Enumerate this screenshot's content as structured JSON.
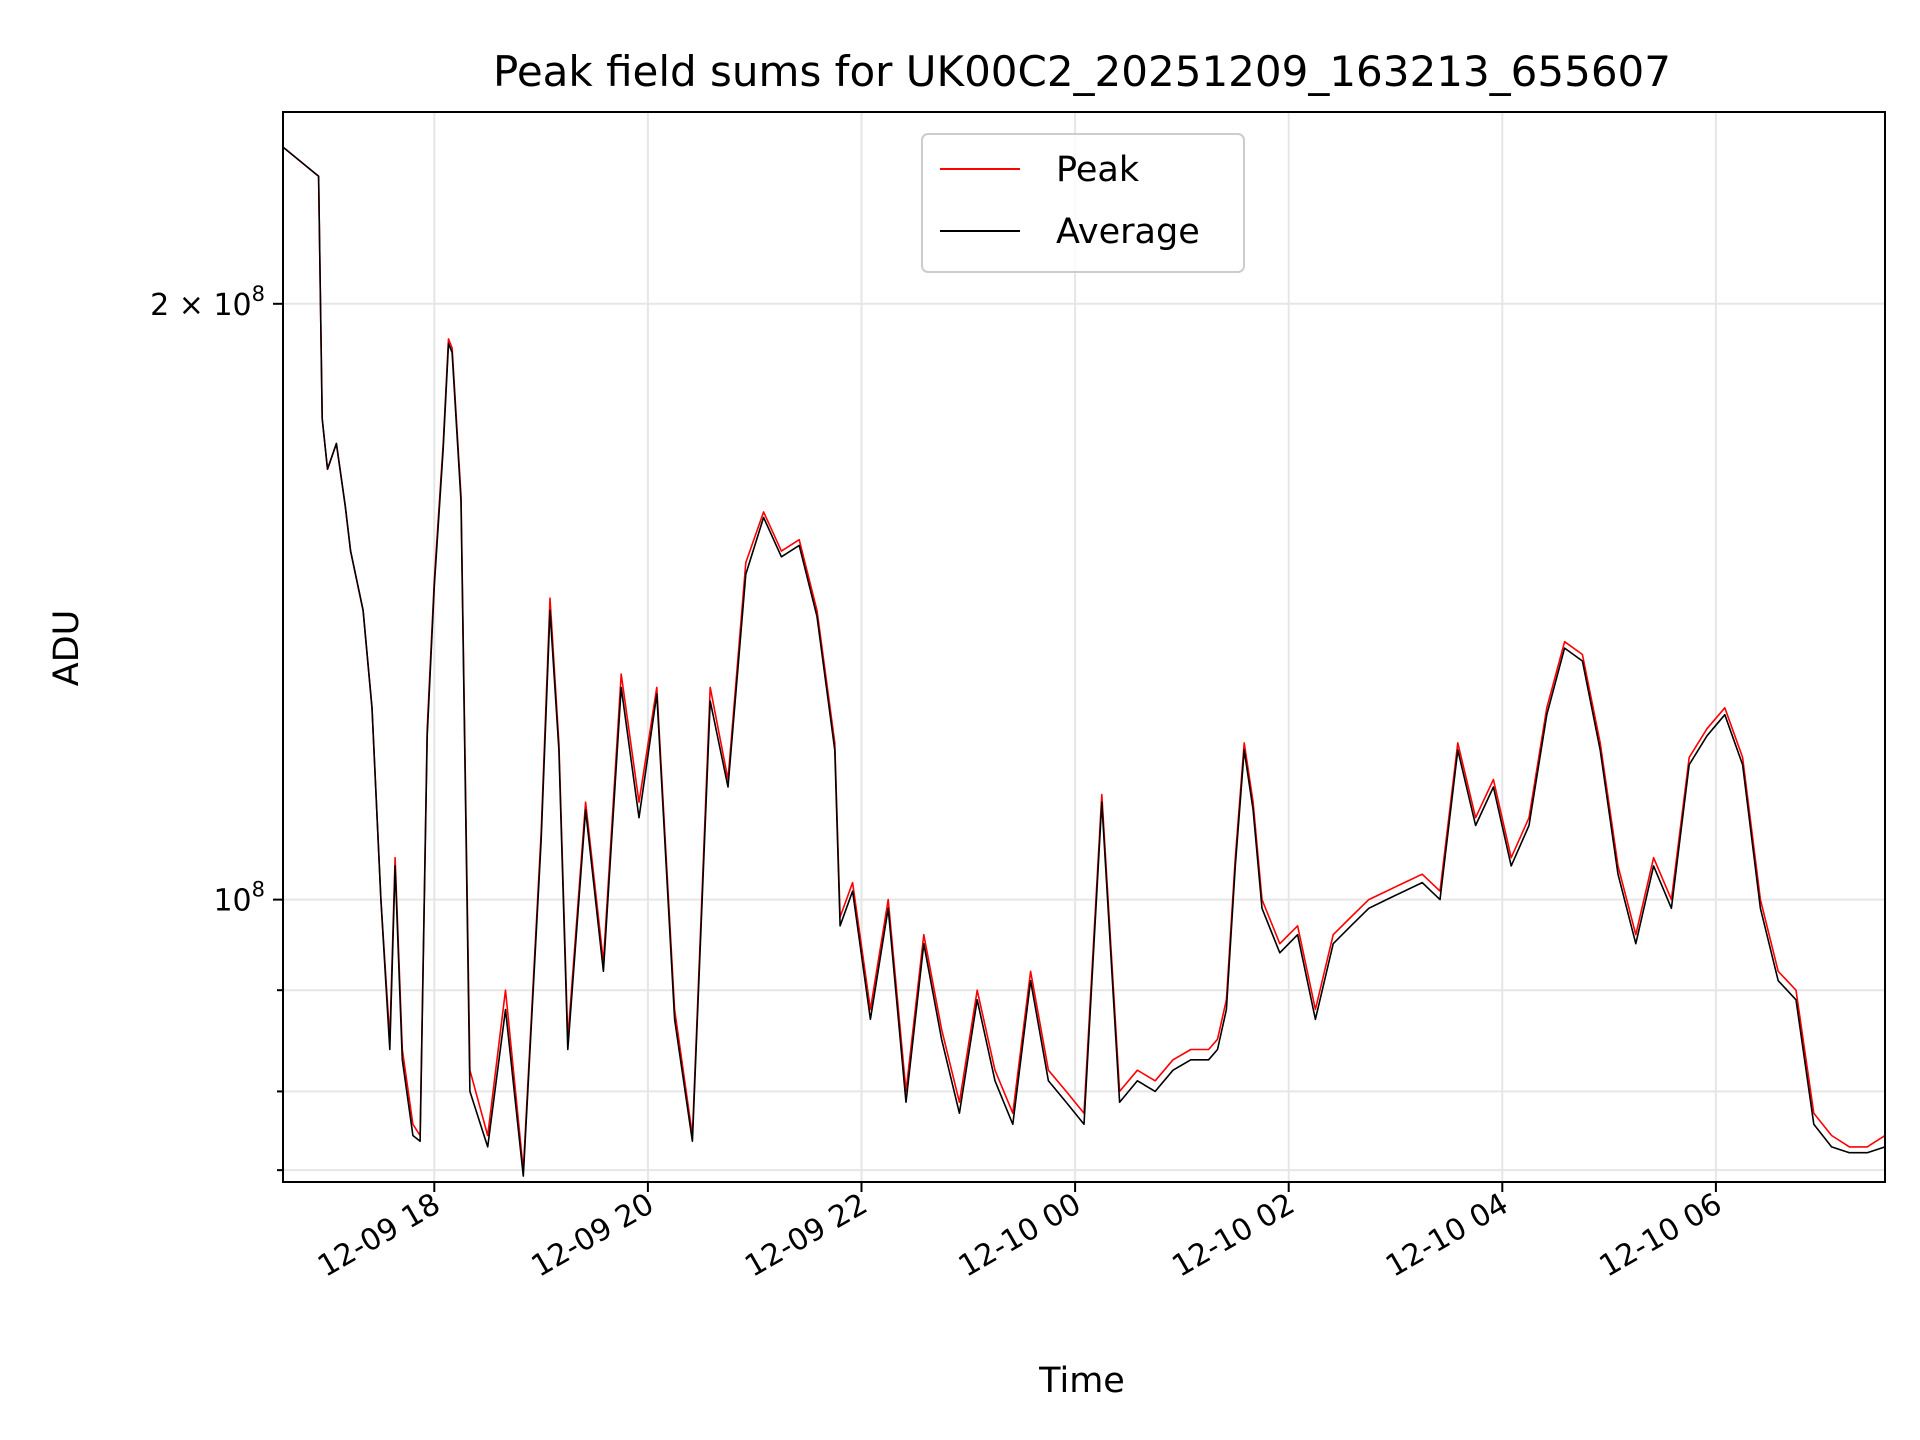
{
  "chart_data": {
    "type": "line",
    "title": "Peak field sums for UK00C2_20251209_163213_655607",
    "xlabel": "Time",
    "ylabel": "ADU",
    "yscale": "log",
    "ylim": [
      72000000,
      250000000
    ],
    "xlim": [
      "2025-12-09T16:35",
      "2025-12-10T07:35"
    ],
    "grid": true,
    "legend": "upper-center",
    "x_ticks": [
      {
        "t": "2025-12-09T18:00",
        "label": "12-09 18"
      },
      {
        "t": "2025-12-09T20:00",
        "label": "12-09 20"
      },
      {
        "t": "2025-12-09T22:00",
        "label": "12-09 22"
      },
      {
        "t": "2025-12-10T00:00",
        "label": "12-10 00"
      },
      {
        "t": "2025-12-10T02:00",
        "label": "12-10 02"
      },
      {
        "t": "2025-12-10T04:00",
        "label": "12-10 04"
      },
      {
        "t": "2025-12-10T06:00",
        "label": "12-10 06"
      }
    ],
    "y_major_ticks": [
      {
        "value": 100000000,
        "base": "10",
        "exp": "8"
      },
      {
        "value": 200000000,
        "mantissa": "2",
        "base": "10",
        "exp": "8"
      }
    ],
    "y_minor_ticks": [
      73000000,
      80000000,
      90000000
    ],
    "series": [
      {
        "name": "Peak",
        "color": "#ff0000",
        "points": [
          [
            "2025-12-09T16:35",
            240000000
          ],
          [
            "2025-12-09T16:55",
            232000000
          ],
          [
            "2025-12-09T16:57",
            175000000
          ],
          [
            "2025-12-09T17:00",
            165000000
          ],
          [
            "2025-12-09T17:05",
            170000000
          ],
          [
            "2025-12-09T17:10",
            158000000
          ],
          [
            "2025-12-09T17:13",
            150000000
          ],
          [
            "2025-12-09T17:20",
            140000000
          ],
          [
            "2025-12-09T17:25",
            125000000
          ],
          [
            "2025-12-09T17:30",
            100000000
          ],
          [
            "2025-12-09T17:35",
            85000000
          ],
          [
            "2025-12-09T17:38",
            105000000
          ],
          [
            "2025-12-09T17:42",
            84000000
          ],
          [
            "2025-12-09T17:48",
            77000000
          ],
          [
            "2025-12-09T17:52",
            76000000
          ],
          [
            "2025-12-09T17:56",
            122000000
          ],
          [
            "2025-12-09T18:00",
            145000000
          ],
          [
            "2025-12-09T18:05",
            170000000
          ],
          [
            "2025-12-09T18:08",
            192000000
          ],
          [
            "2025-12-09T18:10",
            190000000
          ],
          [
            "2025-12-09T18:15",
            160000000
          ],
          [
            "2025-12-09T18:20",
            82000000
          ],
          [
            "2025-12-09T18:30",
            76000000
          ],
          [
            "2025-12-09T18:40",
            90000000
          ],
          [
            "2025-12-09T18:50",
            73000000
          ],
          [
            "2025-12-09T19:00",
            108000000
          ],
          [
            "2025-12-09T19:05",
            142000000
          ],
          [
            "2025-12-09T19:10",
            120000000
          ],
          [
            "2025-12-09T19:15",
            85000000
          ],
          [
            "2025-12-09T19:25",
            112000000
          ],
          [
            "2025-12-09T19:35",
            93000000
          ],
          [
            "2025-12-09T19:45",
            130000000
          ],
          [
            "2025-12-09T19:55",
            112000000
          ],
          [
            "2025-12-09T20:05",
            128000000
          ],
          [
            "2025-12-09T20:15",
            88000000
          ],
          [
            "2025-12-09T20:25",
            76000000
          ],
          [
            "2025-12-09T20:35",
            128000000
          ],
          [
            "2025-12-09T20:45",
            115000000
          ],
          [
            "2025-12-09T20:55",
            148000000
          ],
          [
            "2025-12-09T21:05",
            157000000
          ],
          [
            "2025-12-09T21:15",
            150000000
          ],
          [
            "2025-12-09T21:25",
            152000000
          ],
          [
            "2025-12-09T21:35",
            140000000
          ],
          [
            "2025-12-09T21:45",
            120000000
          ],
          [
            "2025-12-09T21:48",
            98000000
          ],
          [
            "2025-12-09T21:55",
            102000000
          ],
          [
            "2025-12-09T22:05",
            88000000
          ],
          [
            "2025-12-09T22:15",
            100000000
          ],
          [
            "2025-12-09T22:25",
            80000000
          ],
          [
            "2025-12-09T22:35",
            96000000
          ],
          [
            "2025-12-09T22:45",
            86000000
          ],
          [
            "2025-12-09T22:55",
            79000000
          ],
          [
            "2025-12-09T23:05",
            90000000
          ],
          [
            "2025-12-09T23:15",
            82000000
          ],
          [
            "2025-12-09T23:25",
            78000000
          ],
          [
            "2025-12-09T23:35",
            92000000
          ],
          [
            "2025-12-09T23:45",
            82000000
          ],
          [
            "2025-12-09T23:55",
            80000000
          ],
          [
            "2025-12-10T00:05",
            78000000
          ],
          [
            "2025-12-10T00:15",
            113000000
          ],
          [
            "2025-12-10T00:25",
            80000000
          ],
          [
            "2025-12-10T00:35",
            82000000
          ],
          [
            "2025-12-10T00:45",
            81000000
          ],
          [
            "2025-12-10T00:55",
            83000000
          ],
          [
            "2025-12-10T01:05",
            84000000
          ],
          [
            "2025-12-10T01:15",
            84000000
          ],
          [
            "2025-12-10T01:20",
            85000000
          ],
          [
            "2025-12-10T01:25",
            89000000
          ],
          [
            "2025-12-10T01:30",
            105000000
          ],
          [
            "2025-12-10T01:35",
            120000000
          ],
          [
            "2025-12-10T01:40",
            112000000
          ],
          [
            "2025-12-10T01:45",
            100000000
          ],
          [
            "2025-12-10T01:55",
            95000000
          ],
          [
            "2025-12-10T02:05",
            97000000
          ],
          [
            "2025-12-10T02:15",
            88000000
          ],
          [
            "2025-12-10T02:25",
            96000000
          ],
          [
            "2025-12-10T02:35",
            98000000
          ],
          [
            "2025-12-10T02:45",
            100000000
          ],
          [
            "2025-12-10T02:55",
            101000000
          ],
          [
            "2025-12-10T03:05",
            102000000
          ],
          [
            "2025-12-10T03:15",
            103000000
          ],
          [
            "2025-12-10T03:25",
            101000000
          ],
          [
            "2025-12-10T03:35",
            120000000
          ],
          [
            "2025-12-10T03:45",
            110000000
          ],
          [
            "2025-12-10T03:55",
            115000000
          ],
          [
            "2025-12-10T04:05",
            105000000
          ],
          [
            "2025-12-10T04:15",
            110000000
          ],
          [
            "2025-12-10T04:25",
            125000000
          ],
          [
            "2025-12-10T04:35",
            135000000
          ],
          [
            "2025-12-10T04:45",
            133000000
          ],
          [
            "2025-12-10T04:55",
            120000000
          ],
          [
            "2025-12-10T05:05",
            104000000
          ],
          [
            "2025-12-10T05:15",
            96000000
          ],
          [
            "2025-12-10T05:25",
            105000000
          ],
          [
            "2025-12-10T05:35",
            100000000
          ],
          [
            "2025-12-10T05:45",
            118000000
          ],
          [
            "2025-12-10T05:55",
            122000000
          ],
          [
            "2025-12-10T06:05",
            125000000
          ],
          [
            "2025-12-10T06:15",
            118000000
          ],
          [
            "2025-12-10T06:25",
            100000000
          ],
          [
            "2025-12-10T06:35",
            92000000
          ],
          [
            "2025-12-10T06:45",
            90000000
          ],
          [
            "2025-12-10T06:55",
            78000000
          ],
          [
            "2025-12-10T07:05",
            76000000
          ],
          [
            "2025-12-10T07:15",
            75000000
          ],
          [
            "2025-12-10T07:25",
            75000000
          ],
          [
            "2025-12-10T07:35",
            76000000
          ]
        ]
      },
      {
        "name": "Average",
        "color": "#000000",
        "points": [
          [
            "2025-12-09T16:35",
            240000000
          ],
          [
            "2025-12-09T16:55",
            232000000
          ],
          [
            "2025-12-09T16:57",
            175000000
          ],
          [
            "2025-12-09T17:00",
            165000000
          ],
          [
            "2025-12-09T17:05",
            170000000
          ],
          [
            "2025-12-09T17:10",
            158000000
          ],
          [
            "2025-12-09T17:13",
            150000000
          ],
          [
            "2025-12-09T17:20",
            140000000
          ],
          [
            "2025-12-09T17:25",
            125000000
          ],
          [
            "2025-12-09T17:30",
            100000000
          ],
          [
            "2025-12-09T17:35",
            84000000
          ],
          [
            "2025-12-09T17:38",
            104000000
          ],
          [
            "2025-12-09T17:42",
            83000000
          ],
          [
            "2025-12-09T17:48",
            76000000
          ],
          [
            "2025-12-09T17:52",
            75500000
          ],
          [
            "2025-12-09T17:56",
            121000000
          ],
          [
            "2025-12-09T18:00",
            144000000
          ],
          [
            "2025-12-09T18:05",
            169000000
          ],
          [
            "2025-12-09T18:08",
            191000000
          ],
          [
            "2025-12-09T18:10",
            189000000
          ],
          [
            "2025-12-09T18:15",
            159000000
          ],
          [
            "2025-12-09T18:20",
            80000000
          ],
          [
            "2025-12-09T18:30",
            75000000
          ],
          [
            "2025-12-09T18:40",
            88000000
          ],
          [
            "2025-12-09T18:50",
            72500000
          ],
          [
            "2025-12-09T19:00",
            107000000
          ],
          [
            "2025-12-09T19:05",
            140000000
          ],
          [
            "2025-12-09T19:10",
            119000000
          ],
          [
            "2025-12-09T19:15",
            84000000
          ],
          [
            "2025-12-09T19:25",
            111000000
          ],
          [
            "2025-12-09T19:35",
            92000000
          ],
          [
            "2025-12-09T19:45",
            128000000
          ],
          [
            "2025-12-09T19:55",
            110000000
          ],
          [
            "2025-12-09T20:05",
            127000000
          ],
          [
            "2025-12-09T20:15",
            87000000
          ],
          [
            "2025-12-09T20:25",
            75500000
          ],
          [
            "2025-12-09T20:35",
            126000000
          ],
          [
            "2025-12-09T20:45",
            114000000
          ],
          [
            "2025-12-09T20:55",
            146000000
          ],
          [
            "2025-12-09T21:05",
            156000000
          ],
          [
            "2025-12-09T21:15",
            149000000
          ],
          [
            "2025-12-09T21:25",
            151000000
          ],
          [
            "2025-12-09T21:35",
            139000000
          ],
          [
            "2025-12-09T21:45",
            119000000
          ],
          [
            "2025-12-09T21:48",
            97000000
          ],
          [
            "2025-12-09T21:55",
            101000000
          ],
          [
            "2025-12-09T22:05",
            87000000
          ],
          [
            "2025-12-09T22:15",
            99000000
          ],
          [
            "2025-12-09T22:25",
            79000000
          ],
          [
            "2025-12-09T22:35",
            95000000
          ],
          [
            "2025-12-09T22:45",
            85000000
          ],
          [
            "2025-12-09T22:55",
            78000000
          ],
          [
            "2025-12-09T23:05",
            89000000
          ],
          [
            "2025-12-09T23:15",
            81000000
          ],
          [
            "2025-12-09T23:25",
            77000000
          ],
          [
            "2025-12-09T23:35",
            91000000
          ],
          [
            "2025-12-09T23:45",
            81000000
          ],
          [
            "2025-12-09T23:55",
            79000000
          ],
          [
            "2025-12-10T00:05",
            77000000
          ],
          [
            "2025-12-10T00:15",
            112000000
          ],
          [
            "2025-12-10T00:25",
            79000000
          ],
          [
            "2025-12-10T00:35",
            81000000
          ],
          [
            "2025-12-10T00:45",
            80000000
          ],
          [
            "2025-12-10T00:55",
            82000000
          ],
          [
            "2025-12-10T01:05",
            83000000
          ],
          [
            "2025-12-10T01:15",
            83000000
          ],
          [
            "2025-12-10T01:20",
            84000000
          ],
          [
            "2025-12-10T01:25",
            88000000
          ],
          [
            "2025-12-10T01:30",
            104000000
          ],
          [
            "2025-12-10T01:35",
            119000000
          ],
          [
            "2025-12-10T01:40",
            111000000
          ],
          [
            "2025-12-10T01:45",
            99000000
          ],
          [
            "2025-12-10T01:55",
            94000000
          ],
          [
            "2025-12-10T02:05",
            96000000
          ],
          [
            "2025-12-10T02:15",
            87000000
          ],
          [
            "2025-12-10T02:25",
            95000000
          ],
          [
            "2025-12-10T02:35",
            97000000
          ],
          [
            "2025-12-10T02:45",
            99000000
          ],
          [
            "2025-12-10T02:55",
            100000000
          ],
          [
            "2025-12-10T03:05",
            101000000
          ],
          [
            "2025-12-10T03:15",
            102000000
          ],
          [
            "2025-12-10T03:25",
            100000000
          ],
          [
            "2025-12-10T03:35",
            119000000
          ],
          [
            "2025-12-10T03:45",
            109000000
          ],
          [
            "2025-12-10T03:55",
            114000000
          ],
          [
            "2025-12-10T04:05",
            104000000
          ],
          [
            "2025-12-10T04:15",
            109000000
          ],
          [
            "2025-12-10T04:25",
            124000000
          ],
          [
            "2025-12-10T04:35",
            134000000
          ],
          [
            "2025-12-10T04:45",
            132000000
          ],
          [
            "2025-12-10T04:55",
            119000000
          ],
          [
            "2025-12-10T05:05",
            103000000
          ],
          [
            "2025-12-10T05:15",
            95000000
          ],
          [
            "2025-12-10T05:25",
            104000000
          ],
          [
            "2025-12-10T05:35",
            99000000
          ],
          [
            "2025-12-10T05:45",
            117000000
          ],
          [
            "2025-12-10T05:55",
            121000000
          ],
          [
            "2025-12-10T06:05",
            124000000
          ],
          [
            "2025-12-10T06:15",
            117000000
          ],
          [
            "2025-12-10T06:25",
            99000000
          ],
          [
            "2025-12-10T06:35",
            91000000
          ],
          [
            "2025-12-10T06:45",
            89000000
          ],
          [
            "2025-12-10T06:55",
            77000000
          ],
          [
            "2025-12-10T07:05",
            75000000
          ],
          [
            "2025-12-10T07:15",
            74500000
          ],
          [
            "2025-12-10T07:25",
            74500000
          ],
          [
            "2025-12-10T07:35",
            75000000
          ]
        ]
      }
    ]
  }
}
